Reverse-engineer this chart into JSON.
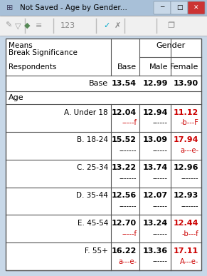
{
  "title_bar": "Not Saved - Age by Gender...",
  "bg_color": "#c8d8e8",
  "title_bg": "#b0c8e0",
  "toolbar_bg": "#e8e8e8",
  "table_bg": "#ffffff",
  "rows": [
    {
      "label": "A. Under 18",
      "base": "12.04",
      "base_sig": "-----f",
      "base_sig_color": "#cc0000",
      "male": "12.94",
      "male_sig": "------",
      "male_sig_color": "#000000",
      "female": "11.12",
      "female_color": "#cc0000",
      "female_sig": "-b---F",
      "female_sig_color": "#cc0000"
    },
    {
      "label": "B. 18-24",
      "base": "15.52",
      "base_sig": "-------",
      "base_sig_color": "#000000",
      "male": "13.09",
      "male_sig": "------",
      "male_sig_color": "#000000",
      "female": "17.94",
      "female_color": "#cc0000",
      "female_sig": "a---e-",
      "female_sig_color": "#cc0000"
    },
    {
      "label": "C. 25-34",
      "base": "13.22",
      "base_sig": "-------",
      "base_sig_color": "#000000",
      "male": "13.74",
      "male_sig": "------",
      "male_sig_color": "#000000",
      "female": "12.96",
      "female_color": "#000000",
      "female_sig": "-------",
      "female_sig_color": "#000000"
    },
    {
      "label": "D. 35-44",
      "base": "12.56",
      "base_sig": "-------",
      "base_sig_color": "#000000",
      "male": "12.07",
      "male_sig": "------",
      "male_sig_color": "#000000",
      "female": "12.93",
      "female_color": "#000000",
      "female_sig": "-------",
      "female_sig_color": "#000000"
    },
    {
      "label": "E. 45-54",
      "base": "12.70",
      "base_sig": "-----f",
      "base_sig_color": "#cc0000",
      "male": "13.24",
      "male_sig": "------",
      "male_sig_color": "#000000",
      "female": "12.44",
      "female_color": "#cc0000",
      "female_sig": "-b---f",
      "female_sig_color": "#cc0000"
    },
    {
      "label": "F. 55+",
      "base": "16.22",
      "base_sig": "a---e-",
      "base_sig_color": "#cc0000",
      "male": "13.36",
      "male_sig": "------",
      "male_sig_color": "#000000",
      "female": "17.11",
      "female_color": "#cc0000",
      "female_sig": "A---e-",
      "female_sig_color": "#cc0000"
    }
  ]
}
